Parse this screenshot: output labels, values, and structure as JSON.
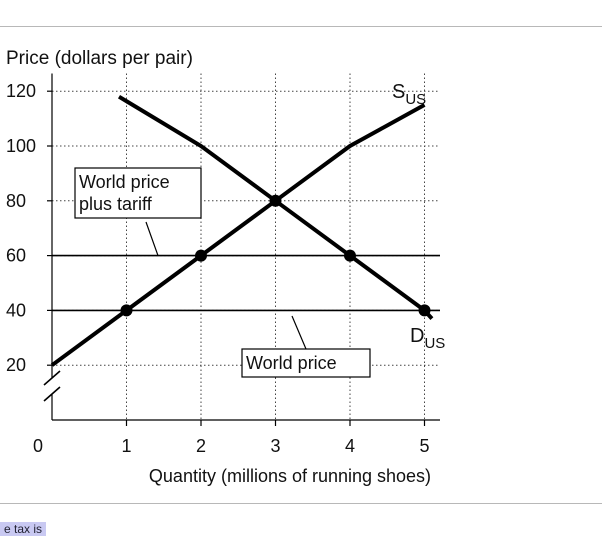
{
  "chart_data": {
    "type": "line",
    "ylabel": "Price (dollars per pair)",
    "xlabel": "Quantity (millions of running shoes)",
    "origin_label": "0",
    "x_ticks": [
      "1",
      "2",
      "3",
      "4",
      "5"
    ],
    "y_ticks": [
      "20",
      "40",
      "60",
      "80",
      "100",
      "120"
    ],
    "xlim": [
      0,
      5.2
    ],
    "ylim": [
      0,
      125
    ],
    "axis_break": true,
    "series": [
      {
        "name": "S",
        "subscript": "US",
        "color": "#000000",
        "points": [
          [
            0,
            20
          ],
          [
            1,
            40
          ],
          [
            2,
            60
          ],
          [
            3,
            80
          ],
          [
            4,
            100
          ],
          [
            5,
            115
          ]
        ]
      },
      {
        "name": "D",
        "subscript": "US",
        "color": "#000000",
        "points": [
          [
            0.9,
            118
          ],
          [
            2,
            100
          ],
          [
            3,
            80
          ],
          [
            4,
            60
          ],
          [
            5,
            40
          ],
          [
            5.1,
            37
          ]
        ]
      }
    ],
    "markers": [
      [
        1,
        40
      ],
      [
        2,
        60
      ],
      [
        3,
        80
      ],
      [
        4,
        60
      ],
      [
        5,
        40
      ]
    ],
    "hlines": [
      {
        "y": 60,
        "label_lines": [
          "World price",
          "plus tariff"
        ]
      },
      {
        "y": 40,
        "label_lines": [
          "World price"
        ]
      }
    ],
    "grid": "dotted"
  },
  "footer": {
    "snippet": "e tax is"
  }
}
